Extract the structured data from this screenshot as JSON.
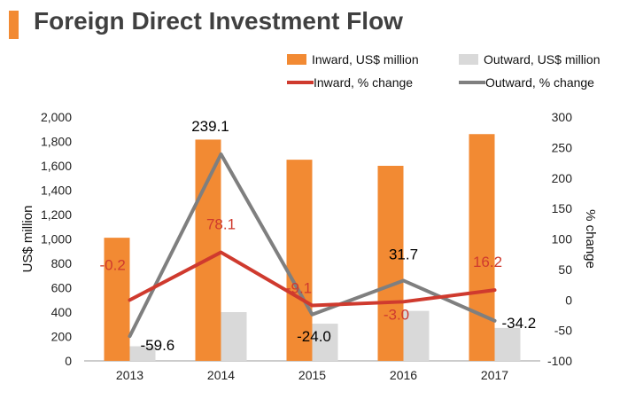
{
  "page": {
    "title": "Foreign Direct Investment Flow"
  },
  "colors": {
    "inward_bar": "#F28A33",
    "outward_bar": "#D9D9D9",
    "inward_line": "#CF3A2E",
    "outward_line": "#7F7F7F",
    "title_accent": "#F28A33",
    "axis": "#999999"
  },
  "chart_data": {
    "type": "bar",
    "title": "Foreign Direct Investment Flow",
    "categories": [
      "2013",
      "2014",
      "2015",
      "2016",
      "2017"
    ],
    "series": [
      {
        "name": "Inward, US$ million",
        "type": "bar",
        "axis": "left",
        "values": [
          1010,
          1815,
          1650,
          1600,
          1860
        ]
      },
      {
        "name": "Outward, US$ million",
        "type": "bar",
        "axis": "left",
        "values": [
          120,
          400,
          305,
          410,
          270
        ]
      },
      {
        "name": "Inward, % change",
        "type": "line",
        "axis": "right",
        "values": [
          -0.2,
          78.1,
          -9.1,
          -3.0,
          16.2
        ],
        "labels": [
          "-0.2",
          "78.1",
          "-9.1",
          "-3.0",
          "16.2"
        ]
      },
      {
        "name": "Outward, % change",
        "type": "line",
        "axis": "right",
        "values": [
          -59.6,
          239.1,
          -24.0,
          31.7,
          -34.2
        ],
        "labels": [
          "-59.6",
          "239.1",
          "-24.0",
          "31.7",
          "-34.2"
        ]
      }
    ],
    "ylabel": "US$ million",
    "y2label": "% change",
    "ylim": [
      0,
      2000
    ],
    "y2lim": [
      -100,
      300
    ],
    "yticks": [
      "0",
      "200",
      "400",
      "600",
      "800",
      "1,000",
      "1,200",
      "1,400",
      "1,600",
      "1,800",
      "2,000"
    ],
    "y2ticks": [
      "-100",
      "-50",
      "0",
      "50",
      "100",
      "150",
      "200",
      "250",
      "300"
    ],
    "legend": "top-right"
  }
}
